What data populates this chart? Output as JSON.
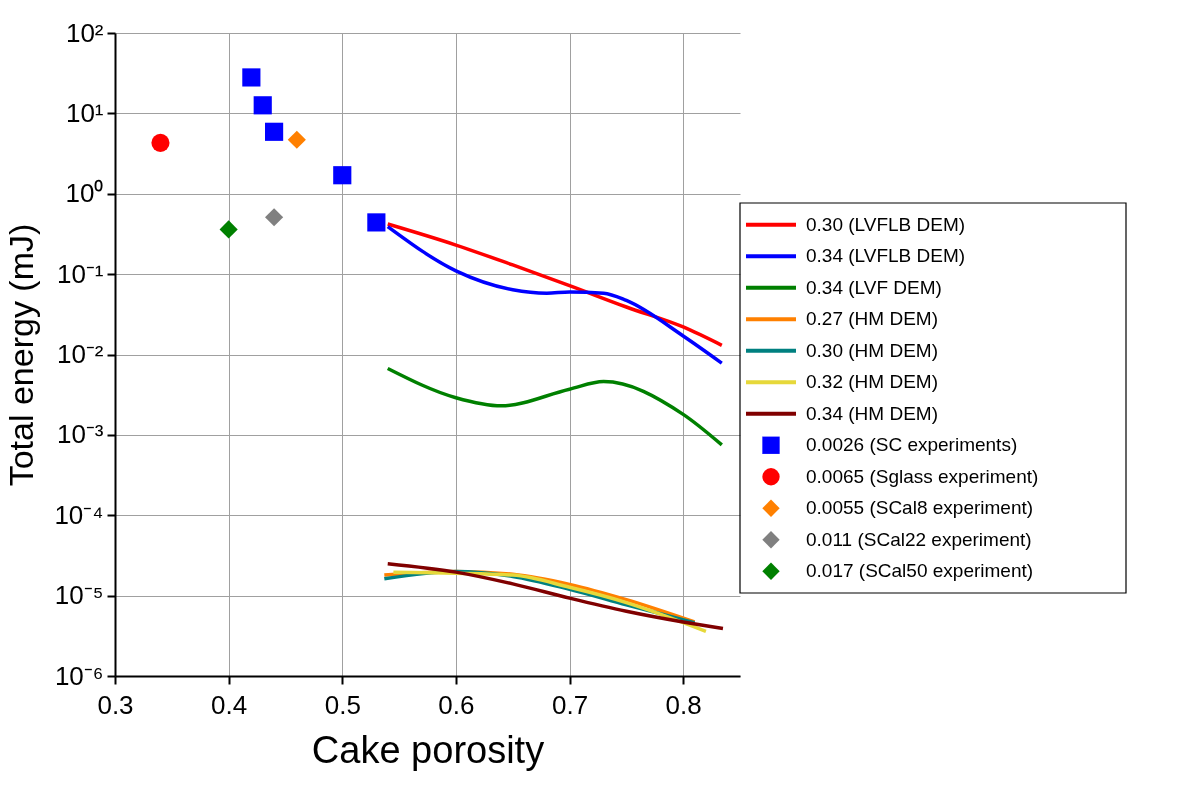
{
  "chart_data": {
    "type": "line",
    "xlabel": "Cake porosity",
    "ylabel": "Total energy (mJ)",
    "log": "y",
    "grid": true,
    "legend": "right",
    "xlim": [
      0.3,
      0.85
    ],
    "xticks": [
      0.3,
      0.4,
      0.5,
      0.6,
      0.7,
      0.8
    ],
    "ylim": [
      1e-06,
      100
    ],
    "yticks": [
      {
        "value": 1e-06,
        "label": "10⁻⁶"
      },
      {
        "value": 1e-05,
        "label": "10⁻⁵"
      },
      {
        "value": 0.0001,
        "label": "10⁻⁴"
      },
      {
        "value": 0.001,
        "label": "10⁻³"
      },
      {
        "value": 0.01,
        "label": "10⁻²"
      },
      {
        "value": 0.1,
        "label": "10⁻¹"
      },
      {
        "value": 1,
        "label": "10⁰"
      },
      {
        "value": 10,
        "label": "10¹"
      },
      {
        "value": 100,
        "label": "10²"
      }
    ],
    "series": [
      {
        "name": "0.30 (LVFLB DEM)",
        "type": "line",
        "color": "#ff0000",
        "x": [
          0.54,
          0.6,
          0.65,
          0.7,
          0.75,
          0.8,
          0.834
        ],
        "values": [
          0.42,
          0.23,
          0.13,
          0.072,
          0.039,
          0.022,
          0.013
        ]
      },
      {
        "name": "0.34 (LVFLB DEM)",
        "type": "line",
        "color": "#0000ff",
        "x": [
          0.54,
          0.6,
          0.65,
          0.68,
          0.7,
          0.73,
          0.75,
          0.8,
          0.834
        ],
        "values": [
          0.39,
          0.11,
          0.064,
          0.058,
          0.06,
          0.058,
          0.047,
          0.017,
          0.0078
        ]
      },
      {
        "name": "0.34 (LVF DEM)",
        "type": "line",
        "color": "#008000",
        "x": [
          0.54,
          0.6,
          0.64,
          0.7,
          0.73,
          0.8,
          0.834
        ],
        "values": [
          0.0067,
          0.0029,
          0.0023,
          0.0037,
          0.0046,
          0.0018,
          0.00075
        ]
      },
      {
        "name": "0.27 (HM DEM)",
        "type": "line",
        "color": "#ff8000",
        "x": [
          0.537,
          0.6,
          0.65,
          0.7,
          0.75,
          0.81
        ],
        "values": [
          1.8e-05,
          2e-05,
          1.84e-05,
          1.38e-05,
          8.9e-06,
          4.7e-06
        ]
      },
      {
        "name": "0.30 (HM DEM)",
        "type": "line",
        "color": "#008080",
        "x": [
          0.537,
          0.6,
          0.65,
          0.7,
          0.75,
          0.81
        ],
        "values": [
          1.62e-05,
          2e-05,
          1.73e-05,
          1.2e-05,
          7.7e-06,
          4.6e-06
        ]
      },
      {
        "name": "0.32 (HM DEM)",
        "type": "line",
        "color": "#e6d83a",
        "x": [
          0.545,
          0.6,
          0.65,
          0.7,
          0.75,
          0.82
        ],
        "values": [
          1.95e-05,
          1.9e-05,
          1.8e-05,
          1.27e-05,
          8.2e-06,
          3.6e-06
        ]
      },
      {
        "name": "0.34 (HM DEM)",
        "type": "line",
        "color": "#800000",
        "x": [
          0.54,
          0.6,
          0.65,
          0.7,
          0.75,
          0.8,
          0.835
        ],
        "values": [
          2.5e-05,
          1.96e-05,
          1.4e-05,
          9.3e-06,
          6.4e-06,
          4.7e-06,
          3.9e-06
        ]
      },
      {
        "name": "0.0026 (SC experiments)",
        "type": "scatter",
        "marker": "square",
        "color": "#0000ff",
        "x": [
          0.42,
          0.43,
          0.44,
          0.5,
          0.53
        ],
        "values": [
          28,
          12.6,
          5.9,
          1.7,
          0.44
        ]
      },
      {
        "name": "0.0065 (Sglass experiment)",
        "type": "scatter",
        "marker": "circle",
        "color": "#ff0000",
        "x": [
          0.34
        ],
        "values": [
          4.3
        ]
      },
      {
        "name": "0.0055 (SCal8 experiment)",
        "type": "scatter",
        "marker": "diamond",
        "color": "#ff8000",
        "x": [
          0.46
        ],
        "values": [
          4.7
        ]
      },
      {
        "name": "0.011 (SCal22 experiment)",
        "type": "scatter",
        "marker": "diamond",
        "color": "#808080",
        "x": [
          0.44
        ],
        "values": [
          0.51
        ]
      },
      {
        "name": "0.017 (SCal50 experiment)",
        "type": "scatter",
        "marker": "diamond",
        "color": "#008000",
        "x": [
          0.4
        ],
        "values": [
          0.36
        ]
      }
    ]
  }
}
